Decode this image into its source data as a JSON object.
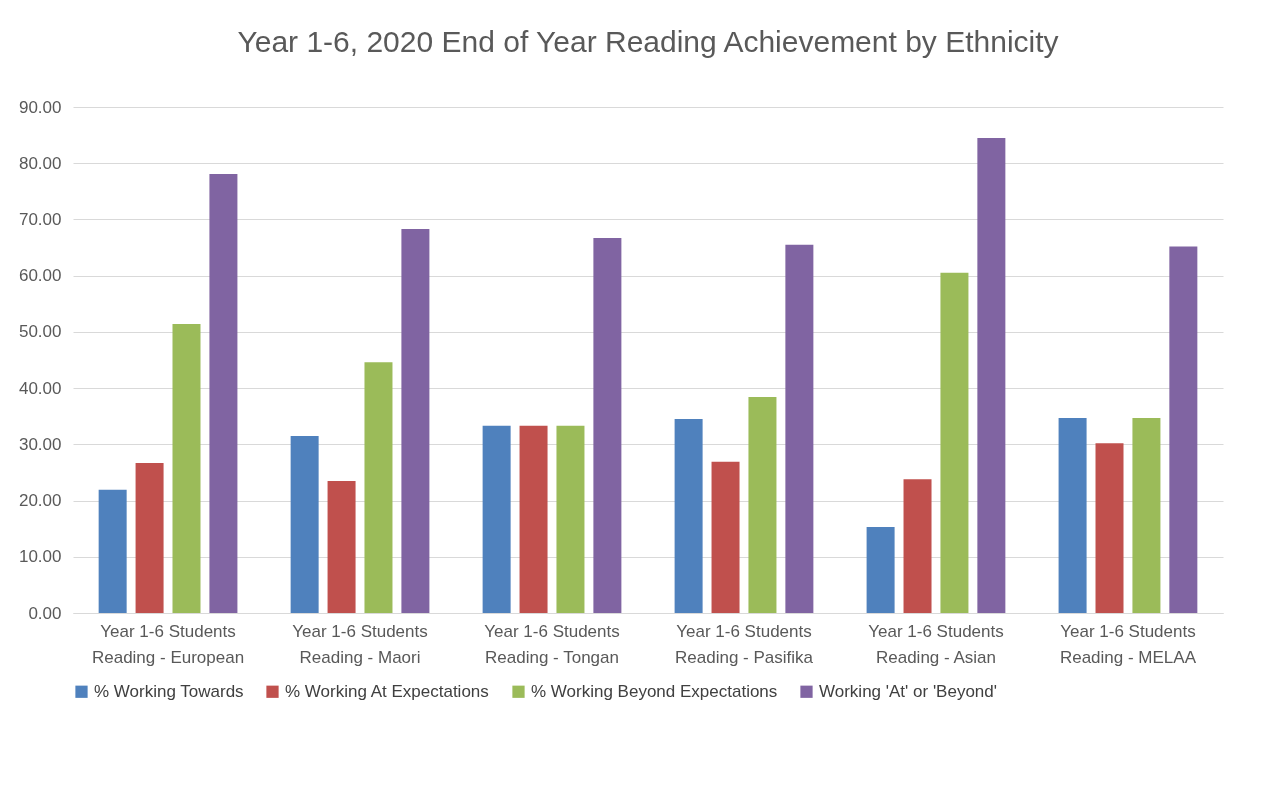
{
  "chart_data": {
    "type": "bar",
    "title": "Year 1-6, 2020 End of Year Reading Achievement by Ethnicity",
    "categories": [
      "Year 1-6 Students Reading - European",
      "Year 1-6 Students Reading - Maori",
      "Year 1-6 Students Reading - Tongan",
      "Year 1-6 Students Reading - Pasifika",
      "Year 1-6 Students Reading - Asian",
      "Year 1-6 Students Reading - MELAA"
    ],
    "series": [
      {
        "name": "% Working Towards",
        "color": "#4f81bd",
        "values": [
          21.9,
          31.5,
          33.3,
          34.5,
          15.3,
          34.7
        ]
      },
      {
        "name": "% Working At Expectations",
        "color": "#c0504d",
        "values": [
          26.7,
          23.5,
          33.3,
          26.9,
          23.8,
          30.2
        ]
      },
      {
        "name": "% Working Beyond Expectations",
        "color": "#9bbb59",
        "values": [
          51.4,
          44.6,
          33.3,
          38.4,
          60.5,
          34.7
        ]
      },
      {
        "name": "Working 'At' or 'Beyond'",
        "color": "#8064a2",
        "values": [
          78.1,
          68.3,
          66.7,
          65.5,
          84.5,
          65.2
        ]
      }
    ],
    "ylim": [
      0,
      90
    ],
    "yticks": [
      {
        "value": 0,
        "label": "0.00"
      },
      {
        "value": 10,
        "label": "10.00"
      },
      {
        "value": 20,
        "label": "20.00"
      },
      {
        "value": 30,
        "label": "30.00"
      },
      {
        "value": 40,
        "label": "40.00"
      },
      {
        "value": 50,
        "label": "50.00"
      },
      {
        "value": 60,
        "label": "60.00"
      },
      {
        "value": 70,
        "label": "70.00"
      },
      {
        "value": 80,
        "label": "80.00"
      },
      {
        "value": 90,
        "label": "90.00"
      }
    ],
    "grid": "y",
    "legend": "bottom"
  }
}
